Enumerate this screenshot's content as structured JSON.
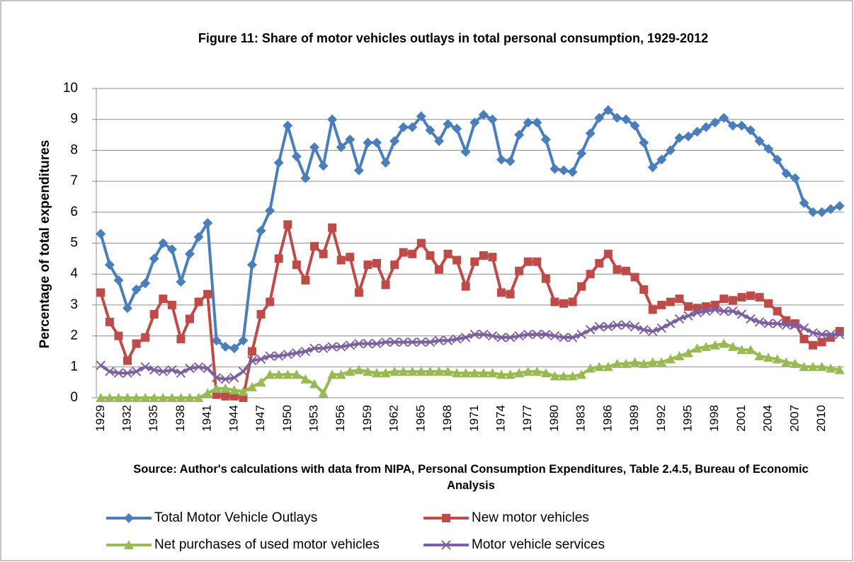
{
  "chart_data": {
    "type": "line",
    "title": "Figure 11: Share of motor vehicles outlays in total personal consumption, 1929-2012",
    "y_label": "Percentage of total expenditures",
    "source": "Source: Author's calculations with data from NIPA, Personal Consumption Expenditures, Table 2.4.5, Bureau of Economic Analysis",
    "categories": [
      "1929",
      null,
      null,
      "1932",
      null,
      null,
      "1935",
      null,
      null,
      "1938",
      null,
      null,
      "1941",
      null,
      null,
      "1944",
      null,
      null,
      "1947",
      null,
      null,
      "1950",
      null,
      null,
      "1953",
      null,
      null,
      "1956",
      null,
      null,
      "1959",
      null,
      null,
      "1962",
      null,
      null,
      "1965",
      null,
      null,
      "1968",
      null,
      null,
      "1971",
      null,
      null,
      "1974",
      null,
      null,
      "1977",
      null,
      null,
      "1980",
      null,
      null,
      "1983",
      null,
      null,
      "1986",
      null,
      null,
      "1989",
      null,
      null,
      "1992",
      null,
      null,
      "1995",
      null,
      null,
      "1998",
      null,
      null,
      "2001",
      null,
      null,
      "2004",
      null,
      null,
      "2007",
      null,
      null,
      "2010",
      null,
      null
    ],
    "series": [
      {
        "name": "Total Motor Vehicle Outlays",
        "color": "#4a7ebb",
        "marker": "diamond",
        "values": [
          5.3,
          4.3,
          3.8,
          2.9,
          3.5,
          3.7,
          4.5,
          5.0,
          4.8,
          3.75,
          4.65,
          5.2,
          5.65,
          1.85,
          1.65,
          1.6,
          1.85,
          4.3,
          5.4,
          6.05,
          7.6,
          8.8,
          7.8,
          7.1,
          8.1,
          7.5,
          9.0,
          8.1,
          8.35,
          7.35,
          8.25,
          8.25,
          7.6,
          8.3,
          8.75,
          8.75,
          9.1,
          8.65,
          8.3,
          8.85,
          8.7,
          7.95,
          8.9,
          9.15,
          9.0,
          7.7,
          7.65,
          8.5,
          8.9,
          8.9,
          8.35,
          7.4,
          7.35,
          7.3,
          7.9,
          8.55,
          9.05,
          9.3,
          9.05,
          9.0,
          8.8,
          8.25,
          7.45,
          7.7,
          8.0,
          8.4,
          8.45,
          8.6,
          8.75,
          8.9,
          9.05,
          8.8,
          8.8,
          8.65,
          8.3,
          8.05,
          7.7,
          7.25,
          7.1,
          6.3,
          6.0,
          6.0,
          6.1,
          6.2
        ]
      },
      {
        "name": "New motor vehicles",
        "color": "#be4b48",
        "marker": "square",
        "values": [
          3.4,
          2.45,
          2.0,
          1.2,
          1.75,
          1.95,
          2.7,
          3.2,
          3.0,
          1.9,
          2.55,
          3.1,
          3.35,
          0.1,
          0.05,
          0.05,
          0.0,
          1.5,
          2.7,
          3.1,
          4.5,
          5.6,
          4.3,
          3.8,
          4.9,
          4.65,
          5.5,
          4.45,
          4.55,
          3.4,
          4.3,
          4.35,
          3.65,
          4.3,
          4.7,
          4.65,
          5.0,
          4.6,
          4.15,
          4.65,
          4.45,
          3.6,
          4.4,
          4.6,
          4.55,
          3.4,
          3.35,
          4.1,
          4.4,
          4.4,
          3.85,
          3.1,
          3.05,
          3.1,
          3.6,
          4.0,
          4.35,
          4.65,
          4.15,
          4.1,
          3.9,
          3.5,
          2.85,
          3.0,
          3.1,
          3.2,
          2.95,
          2.9,
          2.95,
          3.0,
          3.2,
          3.15,
          3.25,
          3.3,
          3.25,
          3.05,
          2.8,
          2.5,
          2.4,
          1.9,
          1.7,
          1.8,
          1.95,
          2.15
        ]
      },
      {
        "name": "Net purchases of used motor vehicles",
        "color": "#98b954",
        "marker": "triangle",
        "values": [
          0,
          0,
          0,
          0,
          0,
          0,
          0,
          0,
          0,
          0,
          0,
          0,
          0.15,
          0.3,
          0.3,
          0.25,
          0.2,
          0.35,
          0.5,
          0.75,
          0.75,
          0.75,
          0.75,
          0.6,
          0.45,
          0.15,
          0.75,
          0.75,
          0.85,
          0.9,
          0.85,
          0.8,
          0.8,
          0.85,
          0.85,
          0.85,
          0.85,
          0.85,
          0.85,
          0.85,
          0.8,
          0.8,
          0.8,
          0.8,
          0.8,
          0.75,
          0.75,
          0.8,
          0.85,
          0.85,
          0.8,
          0.7,
          0.7,
          0.7,
          0.75,
          0.95,
          1.0,
          1.0,
          1.1,
          1.1,
          1.15,
          1.1,
          1.15,
          1.15,
          1.25,
          1.35,
          1.45,
          1.6,
          1.65,
          1.7,
          1.75,
          1.65,
          1.55,
          1.55,
          1.35,
          1.3,
          1.25,
          1.15,
          1.1,
          1.0,
          1.0,
          1.0,
          0.95,
          0.9
        ]
      },
      {
        "name": "Motor vehicle services",
        "color": "#7d60a0",
        "marker": "x",
        "values": [
          1.05,
          0.85,
          0.8,
          0.8,
          0.85,
          1.0,
          0.9,
          0.85,
          0.9,
          0.8,
          0.95,
          1.0,
          0.95,
          0.65,
          0.6,
          0.65,
          0.85,
          1.2,
          1.25,
          1.35,
          1.35,
          1.4,
          1.45,
          1.5,
          1.6,
          1.6,
          1.65,
          1.65,
          1.7,
          1.75,
          1.75,
          1.75,
          1.8,
          1.8,
          1.8,
          1.8,
          1.8,
          1.8,
          1.85,
          1.85,
          1.9,
          1.95,
          2.05,
          2.05,
          2.0,
          1.95,
          1.95,
          2.0,
          2.05,
          2.05,
          2.05,
          2.0,
          1.95,
          1.95,
          2.05,
          2.2,
          2.3,
          2.3,
          2.35,
          2.35,
          2.3,
          2.2,
          2.15,
          2.25,
          2.4,
          2.55,
          2.65,
          2.75,
          2.8,
          2.85,
          2.8,
          2.8,
          2.7,
          2.55,
          2.45,
          2.4,
          2.4,
          2.35,
          2.35,
          2.25,
          2.1,
          2.05,
          2.05,
          2.05
        ]
      }
    ],
    "ylim": [
      0,
      10
    ],
    "yticks": [
      0,
      1,
      2,
      3,
      4,
      5,
      6,
      7,
      8,
      9,
      10
    ],
    "grid": true,
    "legend": "bottom"
  }
}
